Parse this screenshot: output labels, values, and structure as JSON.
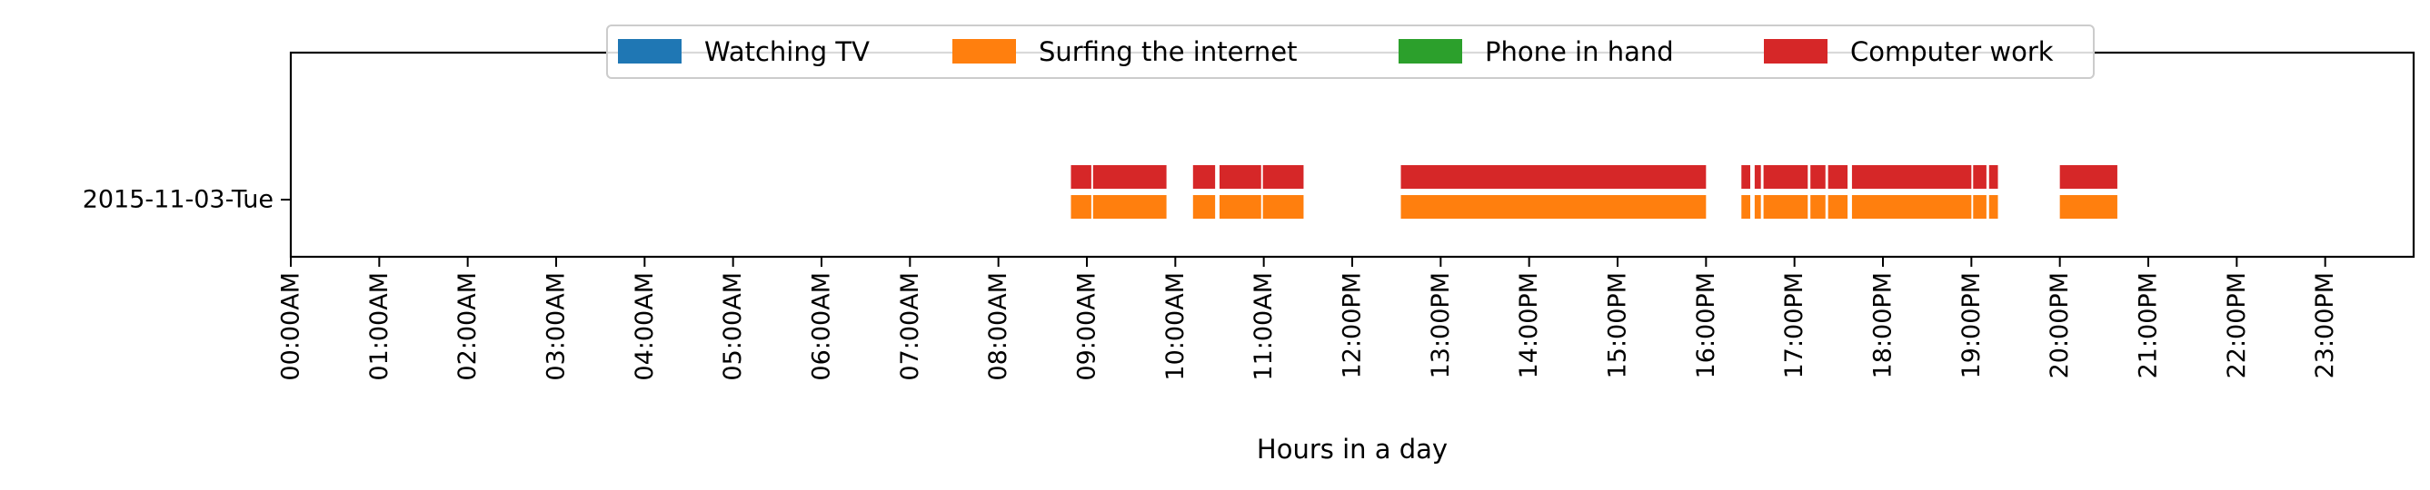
{
  "chart_data": {
    "type": "timeline",
    "xlabel": "Hours in a day",
    "xlim": [
      0,
      24
    ],
    "x_ticks": [
      "00:00AM",
      "01:00AM",
      "02:00AM",
      "03:00AM",
      "04:00AM",
      "05:00AM",
      "06:00AM",
      "07:00AM",
      "08:00AM",
      "09:00AM",
      "10:00AM",
      "11:00AM",
      "12:00PM",
      "13:00PM",
      "14:00PM",
      "15:00PM",
      "16:00PM",
      "17:00PM",
      "18:00PM",
      "19:00PM",
      "20:00PM",
      "21:00PM",
      "22:00PM",
      "23:00PM"
    ],
    "y_categories": [
      "2015-11-03-Tue"
    ],
    "legend_position": "top-center",
    "grid": false,
    "series": [
      {
        "name": "Watching TV",
        "color": "#1f77b4",
        "intervals": []
      },
      {
        "name": "Surfing the internet",
        "color": "#ff7f0e",
        "intervals": [
          [
            8.82,
            9.05
          ],
          [
            9.07,
            9.9
          ],
          [
            10.2,
            10.45
          ],
          [
            10.5,
            10.97
          ],
          [
            10.99,
            11.45
          ],
          [
            12.55,
            16.0
          ],
          [
            16.4,
            16.5
          ],
          [
            16.55,
            16.62
          ],
          [
            16.65,
            17.15
          ],
          [
            17.18,
            17.35
          ],
          [
            17.38,
            17.6
          ],
          [
            17.65,
            19.0
          ],
          [
            19.02,
            19.17
          ],
          [
            19.2,
            19.3
          ],
          [
            20.0,
            20.65
          ]
        ]
      },
      {
        "name": "Phone in hand",
        "color": "#2ca02c",
        "intervals": []
      },
      {
        "name": "Computer work",
        "color": "#d62728",
        "intervals": [
          [
            8.82,
            9.05
          ],
          [
            9.07,
            9.9
          ],
          [
            10.2,
            10.45
          ],
          [
            10.5,
            10.97
          ],
          [
            10.99,
            11.45
          ],
          [
            12.55,
            16.0
          ],
          [
            16.4,
            16.5
          ],
          [
            16.55,
            16.62
          ],
          [
            16.65,
            17.15
          ],
          [
            17.18,
            17.35
          ],
          [
            17.38,
            17.6
          ],
          [
            17.65,
            19.0
          ],
          [
            19.02,
            19.17
          ],
          [
            19.2,
            19.3
          ],
          [
            20.0,
            20.65
          ]
        ]
      }
    ]
  }
}
